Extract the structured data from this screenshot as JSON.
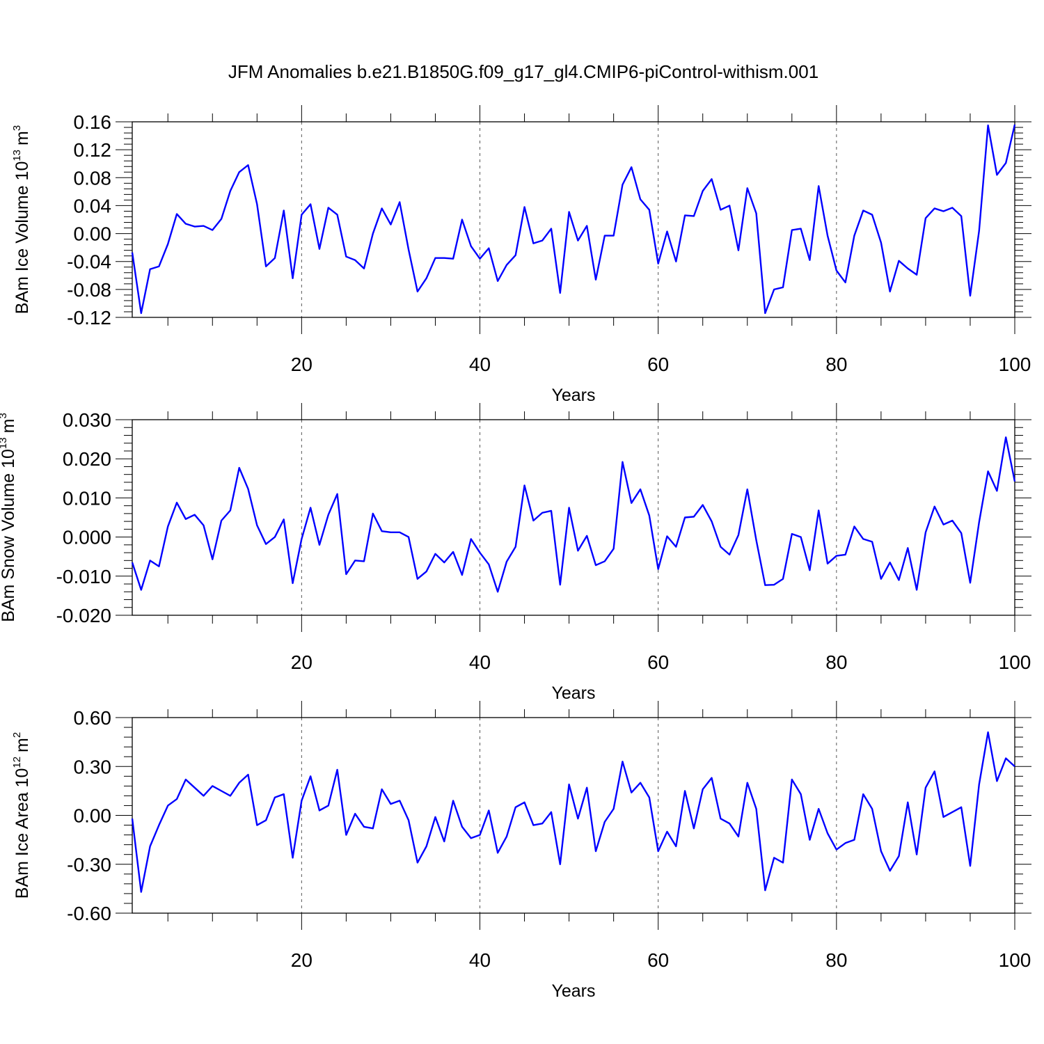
{
  "chart_data": {
    "title": "JFM Anomalies b.e21.B1850G.f09_g17_gl4.CMIP6-piControl-withism.001",
    "panels": [
      {
        "type": "line",
        "ylabel_main": "BAm Ice Volume 10",
        "ylabel_exp": "13",
        "ylabel_unit": "m",
        "ylabel_unit_exp": "3",
        "xlabel": "Years",
        "xlim": [
          1,
          100
        ],
        "ylim": [
          -0.12,
          0.16
        ],
        "yticks": [
          -0.12,
          -0.08,
          -0.04,
          0.0,
          0.04,
          0.08,
          0.12,
          0.16
        ],
        "ytick_labels": [
          "-0.12",
          "-0.08",
          "-0.04",
          "0.00",
          "0.04",
          "0.08",
          "0.12",
          "0.16"
        ],
        "xticks": [
          20,
          40,
          60,
          80,
          100
        ],
        "xtick_labels": [
          "20",
          "40",
          "60",
          "80",
          "100"
        ],
        "color": "#0000ff",
        "values": [
          -0.027,
          -0.114,
          -0.051,
          -0.047,
          -0.015,
          0.028,
          0.014,
          0.01,
          0.011,
          0.005,
          0.021,
          0.061,
          0.088,
          0.098,
          0.042,
          -0.047,
          -0.035,
          0.033,
          -0.064,
          0.027,
          0.042,
          -0.022,
          0.037,
          0.027,
          -0.033,
          -0.038,
          -0.05,
          0.0,
          0.036,
          0.013,
          0.045,
          -0.023,
          -0.083,
          -0.064,
          -0.035,
          -0.035,
          -0.036,
          0.02,
          -0.018,
          -0.036,
          -0.021,
          -0.068,
          -0.045,
          -0.031,
          0.038,
          -0.014,
          -0.01,
          0.007,
          -0.085,
          0.031,
          -0.01,
          0.011,
          -0.066,
          -0.003,
          -0.003,
          0.07,
          0.095,
          0.049,
          0.034,
          -0.043,
          0.003,
          -0.04,
          0.026,
          0.025,
          0.061,
          0.078,
          0.034,
          0.04,
          -0.024,
          0.065,
          0.029,
          -0.114,
          -0.08,
          -0.077,
          0.005,
          0.007,
          -0.038,
          0.068,
          -0.003,
          -0.053,
          -0.07,
          -0.003,
          0.033,
          0.027,
          -0.013,
          -0.083,
          -0.039,
          -0.05,
          -0.059,
          0.022,
          0.036,
          0.032,
          0.037,
          0.025,
          -0.089,
          0.004,
          0.155,
          0.084,
          0.101,
          0.156
        ]
      },
      {
        "type": "line",
        "ylabel_main": "BAm Snow Volume 10",
        "ylabel_exp": "13",
        "ylabel_unit": "m",
        "ylabel_unit_exp": "3",
        "xlabel": "Years",
        "xlim": [
          1,
          100
        ],
        "ylim": [
          -0.02,
          0.03
        ],
        "yticks": [
          -0.02,
          -0.01,
          0.0,
          0.01,
          0.02,
          0.03
        ],
        "ytick_labels": [
          "-0.020",
          "-0.010",
          "0.000",
          "0.010",
          "0.020",
          "0.030"
        ],
        "xticks": [
          20,
          40,
          60,
          80,
          100
        ],
        "xtick_labels": [
          "20",
          "40",
          "60",
          "80",
          "100"
        ],
        "color": "#0000ff",
        "values": [
          -0.0065,
          -0.0135,
          -0.006,
          -0.0075,
          0.0027,
          0.0088,
          0.0046,
          0.0057,
          0.003,
          -0.0057,
          0.0042,
          0.0068,
          0.0177,
          0.0123,
          0.003,
          -0.0018,
          0.0,
          0.0045,
          -0.0118,
          -0.0005,
          0.0075,
          -0.002,
          0.0057,
          0.011,
          -0.0095,
          -0.006,
          -0.0062,
          0.006,
          0.0015,
          0.0012,
          0.0012,
          0.0,
          -0.0107,
          -0.0088,
          -0.0043,
          -0.0065,
          -0.0038,
          -0.0097,
          -0.0005,
          -0.004,
          -0.007,
          -0.014,
          -0.0063,
          -0.0025,
          0.0132,
          0.0042,
          0.0062,
          0.0067,
          -0.0122,
          0.0075,
          -0.0035,
          0.0003,
          -0.0072,
          -0.0062,
          -0.003,
          0.0192,
          0.0087,
          0.0122,
          0.0055,
          -0.0082,
          0.0002,
          -0.0025,
          0.005,
          0.0052,
          0.0082,
          0.004,
          -0.0025,
          -0.0045,
          0.0005,
          0.0122,
          -0.0008,
          -0.0123,
          -0.0122,
          -0.0107,
          0.0008,
          0.0,
          -0.0085,
          0.0068,
          -0.0068,
          -0.0048,
          -0.0045,
          0.0027,
          -0.0005,
          -0.0012,
          -0.0107,
          -0.0065,
          -0.011,
          -0.0028,
          -0.0135,
          0.0012,
          0.0078,
          0.0032,
          0.0042,
          0.001,
          -0.0117,
          0.0038,
          0.0168,
          0.0118,
          0.0255,
          0.0142
        ]
      },
      {
        "type": "line",
        "ylabel_main": "BAm Ice Area 10",
        "ylabel_exp": "12",
        "ylabel_unit": "m",
        "ylabel_unit_exp": "2",
        "xlabel": "Years",
        "xlim": [
          1,
          100
        ],
        "ylim": [
          -0.6,
          0.6
        ],
        "yticks": [
          -0.6,
          -0.3,
          0.0,
          0.3,
          0.6
        ],
        "ytick_labels": [
          "-0.60",
          "-0.30",
          "0.00",
          "0.30",
          "0.60"
        ],
        "xticks": [
          20,
          40,
          60,
          80,
          100
        ],
        "xtick_labels": [
          "20",
          "40",
          "60",
          "80",
          "100"
        ],
        "color": "#0000ff",
        "values": [
          -0.02,
          -0.47,
          -0.19,
          -0.06,
          0.06,
          0.1,
          0.22,
          0.17,
          0.12,
          0.18,
          0.15,
          0.12,
          0.2,
          0.25,
          -0.06,
          -0.03,
          0.11,
          0.13,
          -0.26,
          0.09,
          0.24,
          0.03,
          0.06,
          0.28,
          -0.12,
          0.01,
          -0.07,
          -0.08,
          0.16,
          0.07,
          0.09,
          -0.03,
          -0.29,
          -0.19,
          -0.01,
          -0.16,
          0.09,
          -0.07,
          -0.14,
          -0.12,
          0.03,
          -0.23,
          -0.13,
          0.05,
          0.08,
          -0.06,
          -0.05,
          0.02,
          -0.3,
          0.19,
          -0.02,
          0.17,
          -0.22,
          -0.04,
          0.04,
          0.33,
          0.14,
          0.2,
          0.11,
          -0.22,
          -0.1,
          -0.19,
          0.15,
          -0.08,
          0.16,
          0.23,
          -0.02,
          -0.05,
          -0.13,
          0.2,
          0.04,
          -0.46,
          -0.26,
          -0.29,
          0.22,
          0.13,
          -0.15,
          0.04,
          -0.11,
          -0.21,
          -0.17,
          -0.15,
          0.13,
          0.04,
          -0.22,
          -0.34,
          -0.25,
          0.08,
          -0.24,
          0.17,
          0.27,
          -0.01,
          0.02,
          0.05,
          -0.31,
          0.19,
          0.51,
          0.21,
          0.35,
          0.3
        ]
      }
    ]
  }
}
